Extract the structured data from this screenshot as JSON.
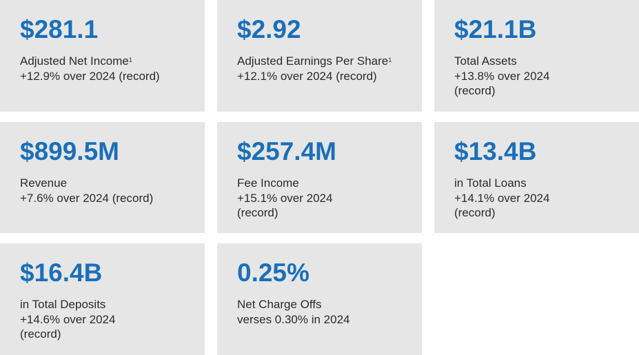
{
  "colors": {
    "card_background": "#e6e6e7",
    "value_blue": "#1a6fb8",
    "text": "#2b2b2b"
  },
  "cards": [
    {
      "value": "$281.1",
      "label": "Adjusted Net Income",
      "footnote": "1",
      "detail": "+12.9% over 2024 (record)"
    },
    {
      "value": "$2.92",
      "label": "Adjusted Earnings Per Share",
      "footnote": "1",
      "detail": "+12.1% over 2024 (record)"
    },
    {
      "value": "$21.1B",
      "label": "Total Assets",
      "detail": "+13.8% over 2024\n(record)"
    },
    {
      "value": "$899.5M",
      "label": "Revenue",
      "detail": "+7.6% over 2024 (record)"
    },
    {
      "value": "$257.4M",
      "label": "Fee Income",
      "detail": "+15.1% over 2024\n(record)"
    },
    {
      "value": "$13.4B",
      "label": "in Total Loans",
      "detail": "+14.1% over 2024\n(record)"
    },
    {
      "value": "$16.4B",
      "label": "in Total Deposits",
      "detail": "+14.6% over 2024\n(record)"
    },
    {
      "value": "0.25%",
      "label": "Net Charge Offs",
      "detail": "verses 0.30% in 2024"
    }
  ]
}
